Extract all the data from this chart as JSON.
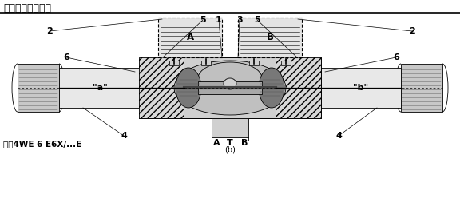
{
  "title": "功能说明，剖视图",
  "model_label": "型号4WE 6 E6X/...E",
  "bg_color": "#ffffff",
  "lc": "#000000",
  "title_fontsize": 9,
  "label_fontsize": 8,
  "small_fontsize": 7,
  "labels": {
    "2L": "2",
    "2R": "2",
    "6L": "6",
    "6R": "6",
    "4L": "4",
    "4R": "4",
    "num1": "1",
    "num3": "3",
    "num5a": "5",
    "num5b": "5",
    "labelA_port": "A",
    "labelB_port": "B",
    "labelT": "T",
    "porta": "\"a\"",
    "portb": "\"b\"",
    "solA": "A",
    "solB": "B",
    "bottom_label": "(b)"
  },
  "colors": {
    "body_light": "#e8e8e8",
    "body_mid": "#d0d0d0",
    "body_dark": "#b0b0b0",
    "spool_dark": "#787878",
    "spool_mid": "#a8a8a8",
    "connector": "#c8c8c8",
    "hatch_bg": "#d8d8d8",
    "inner_oval": "#c0c0c0",
    "sol_bg": "#e4e4e4"
  }
}
